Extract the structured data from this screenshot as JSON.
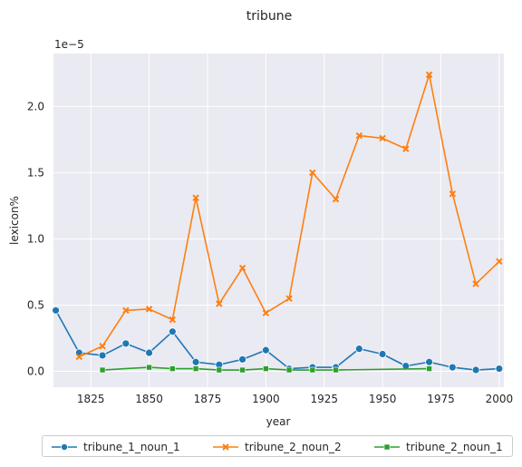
{
  "chart_data": {
    "type": "line",
    "title": "tribune",
    "xlabel": "year",
    "ylabel": "lexicon%",
    "y_scale_label": "1e−5",
    "xlim": [
      1809,
      2002
    ],
    "ylim": [
      -0.12,
      2.4
    ],
    "xticks": [
      1825,
      1850,
      1875,
      1900,
      1925,
      1950,
      1975,
      2000
    ],
    "yticks": [
      0.0,
      0.5,
      1.0,
      1.5,
      2.0
    ],
    "ytick_labels": [
      "0.0",
      "0.5",
      "1.0",
      "1.5",
      "2.0"
    ],
    "grid": true,
    "legend_position": "bottom",
    "series": [
      {
        "name": "tribune_1_noun_1",
        "color": "#1f77b4",
        "marker": "circle",
        "x": [
          1810,
          1820,
          1830,
          1840,
          1850,
          1860,
          1870,
          1880,
          1890,
          1900,
          1910,
          1920,
          1930,
          1940,
          1950,
          1960,
          1970,
          1980,
          1990,
          2000
        ],
        "y": [
          0.46,
          0.14,
          0.12,
          0.21,
          0.14,
          0.3,
          0.07,
          0.05,
          0.09,
          0.16,
          0.02,
          0.03,
          0.03,
          0.17,
          0.13,
          0.04,
          0.07,
          0.03,
          0.01,
          0.02
        ]
      },
      {
        "name": "tribune_2_noun_2",
        "color": "#ff7f0e",
        "marker": "x",
        "x": [
          1820,
          1830,
          1840,
          1850,
          1860,
          1870,
          1880,
          1890,
          1900,
          1910,
          1920,
          1930,
          1940,
          1950,
          1960,
          1970,
          1980,
          1990,
          2000
        ],
        "y": [
          0.11,
          0.19,
          0.46,
          0.47,
          0.39,
          1.31,
          0.51,
          0.78,
          0.44,
          0.55,
          1.5,
          1.3,
          1.78,
          1.76,
          1.68,
          2.24,
          1.34,
          0.66,
          0.83
        ]
      },
      {
        "name": "tribune_2_noun_1",
        "color": "#2ca02c",
        "marker": "square",
        "x": [
          1830,
          1850,
          1860,
          1870,
          1880,
          1890,
          1900,
          1910,
          1920,
          1930,
          1970
        ],
        "y": [
          0.01,
          0.03,
          0.02,
          0.02,
          0.01,
          0.01,
          0.02,
          0.01,
          0.01,
          0.01,
          0.02
        ]
      }
    ]
  }
}
